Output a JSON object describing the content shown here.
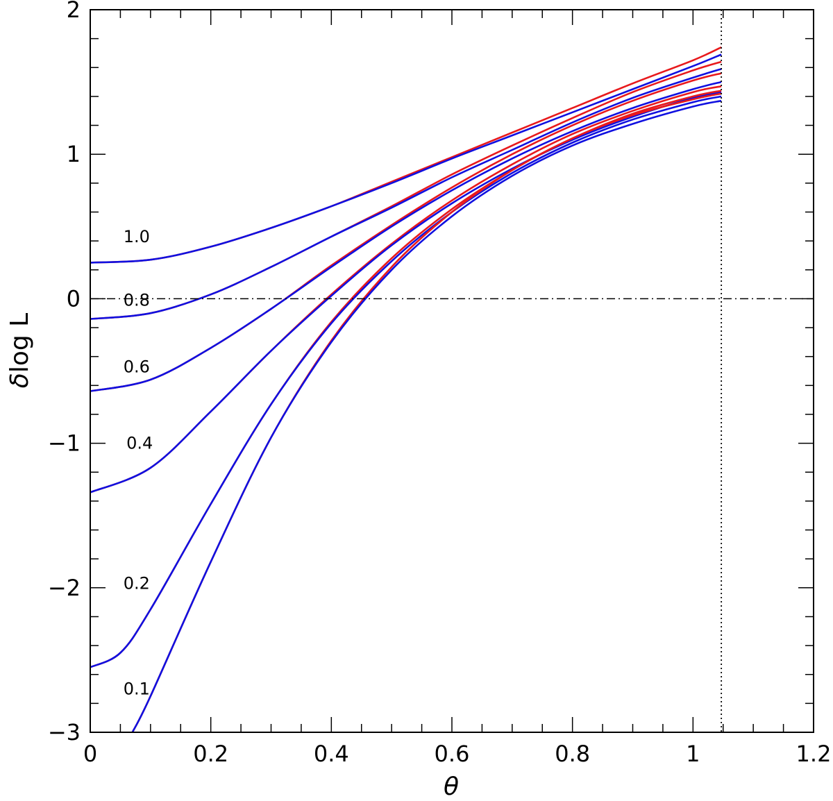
{
  "chart_data": {
    "type": "line",
    "xlabel": "θ",
    "ylabel_prefix": "δ",
    "ylabel_text": "log  L",
    "xlim": [
      0,
      1.2
    ],
    "ylim": [
      -3,
      2
    ],
    "xticks_major": [
      0,
      0.2,
      0.4,
      0.6,
      0.8,
      1,
      1.2
    ],
    "xtick_labels": [
      "0",
      "0.2",
      "0.4",
      "0.6",
      "0.8",
      "1",
      "1.2"
    ],
    "yticks_major": [
      -3,
      -2,
      -1,
      0,
      1,
      2
    ],
    "ytick_labels": [
      "−3",
      "−2",
      "−1",
      "0",
      "1",
      "2"
    ],
    "x_minor_step": 0.05,
    "y_minor_step": 0.2,
    "grid": false,
    "legend": "none",
    "colors": {
      "red": "#e8191c",
      "blue": "#1010e0",
      "axis": "#000000"
    },
    "reference_lines": [
      {
        "kind": "horizontal",
        "value": 0,
        "style": "dash-dot"
      },
      {
        "kind": "vertical",
        "value": 1.047,
        "style": "dotted"
      }
    ],
    "curve_labels": [
      {
        "text": "1.0",
        "x": 0.055,
        "y": 0.43
      },
      {
        "text": "0.8",
        "x": 0.055,
        "y": -0.01
      },
      {
        "text": "0.6",
        "x": 0.055,
        "y": -0.47
      },
      {
        "text": "0.4",
        "x": 0.06,
        "y": -1.0
      },
      {
        "text": "0.2",
        "x": 0.055,
        "y": -1.97
      },
      {
        "text": "0.1",
        "x": 0.055,
        "y": -2.7
      }
    ],
    "series": [
      {
        "label": "1.0",
        "color": "red",
        "points": [
          [
            0,
            0.25
          ],
          [
            0.1,
            0.27
          ],
          [
            0.2,
            0.36
          ],
          [
            0.3,
            0.49
          ],
          [
            0.4,
            0.64
          ],
          [
            0.5,
            0.81
          ],
          [
            0.6,
            0.98
          ],
          [
            0.7,
            1.15
          ],
          [
            0.8,
            1.32
          ],
          [
            0.9,
            1.49
          ],
          [
            1.0,
            1.65
          ],
          [
            1.047,
            1.74
          ]
        ]
      },
      {
        "label": "1.0",
        "color": "blue",
        "points": [
          [
            0,
            0.25
          ],
          [
            0.1,
            0.27
          ],
          [
            0.2,
            0.36
          ],
          [
            0.3,
            0.49
          ],
          [
            0.4,
            0.64
          ],
          [
            0.5,
            0.8
          ],
          [
            0.6,
            0.97
          ],
          [
            0.7,
            1.13
          ],
          [
            0.8,
            1.29
          ],
          [
            0.9,
            1.45
          ],
          [
            1.0,
            1.61
          ],
          [
            1.047,
            1.69
          ]
        ]
      },
      {
        "label": "0.8",
        "color": "red",
        "points": [
          [
            0,
            -0.14
          ],
          [
            0.1,
            -0.1
          ],
          [
            0.2,
            0.03
          ],
          [
            0.3,
            0.22
          ],
          [
            0.4,
            0.43
          ],
          [
            0.5,
            0.64
          ],
          [
            0.6,
            0.86
          ],
          [
            0.7,
            1.06
          ],
          [
            0.8,
            1.25
          ],
          [
            0.9,
            1.43
          ],
          [
            1.0,
            1.58
          ],
          [
            1.047,
            1.64
          ]
        ]
      },
      {
        "label": "0.8",
        "color": "blue",
        "points": [
          [
            0,
            -0.14
          ],
          [
            0.1,
            -0.1
          ],
          [
            0.2,
            0.03
          ],
          [
            0.3,
            0.22
          ],
          [
            0.4,
            0.43
          ],
          [
            0.5,
            0.63
          ],
          [
            0.6,
            0.84
          ],
          [
            0.7,
            1.03
          ],
          [
            0.8,
            1.22
          ],
          [
            0.9,
            1.39
          ],
          [
            1.0,
            1.53
          ],
          [
            1.047,
            1.59
          ]
        ]
      },
      {
        "label": "0.6",
        "color": "red",
        "points": [
          [
            0,
            -0.64
          ],
          [
            0.1,
            -0.56
          ],
          [
            0.2,
            -0.34
          ],
          [
            0.3,
            -0.07
          ],
          [
            0.4,
            0.23
          ],
          [
            0.5,
            0.51
          ],
          [
            0.6,
            0.77
          ],
          [
            0.7,
            1.0
          ],
          [
            0.8,
            1.2
          ],
          [
            0.9,
            1.37
          ],
          [
            1.0,
            1.51
          ],
          [
            1.047,
            1.56
          ]
        ]
      },
      {
        "label": "0.6",
        "color": "blue",
        "points": [
          [
            0,
            -0.64
          ],
          [
            0.1,
            -0.56
          ],
          [
            0.2,
            -0.34
          ],
          [
            0.3,
            -0.07
          ],
          [
            0.4,
            0.22
          ],
          [
            0.5,
            0.5
          ],
          [
            0.6,
            0.75
          ],
          [
            0.7,
            0.97
          ],
          [
            0.8,
            1.16
          ],
          [
            0.9,
            1.32
          ],
          [
            1.0,
            1.45
          ],
          [
            1.047,
            1.5
          ]
        ]
      },
      {
        "label": "0.4",
        "color": "red",
        "points": [
          [
            0,
            -1.34
          ],
          [
            0.1,
            -1.17
          ],
          [
            0.2,
            -0.78
          ],
          [
            0.3,
            -0.36
          ],
          [
            0.4,
            0.03
          ],
          [
            0.5,
            0.38
          ],
          [
            0.6,
            0.68
          ],
          [
            0.7,
            0.93
          ],
          [
            0.8,
            1.14
          ],
          [
            0.9,
            1.3
          ],
          [
            1.0,
            1.43
          ],
          [
            1.047,
            1.47
          ]
        ]
      },
      {
        "label": "0.4",
        "color": "blue",
        "points": [
          [
            0,
            -1.34
          ],
          [
            0.1,
            -1.17
          ],
          [
            0.2,
            -0.78
          ],
          [
            0.3,
            -0.36
          ],
          [
            0.4,
            0.02
          ],
          [
            0.5,
            0.37
          ],
          [
            0.6,
            0.66
          ],
          [
            0.7,
            0.9
          ],
          [
            0.8,
            1.1
          ],
          [
            0.9,
            1.26
          ],
          [
            1.0,
            1.39
          ],
          [
            1.047,
            1.43
          ]
        ]
      },
      {
        "label": "0.2",
        "color": "red",
        "points": [
          [
            0,
            -2.55
          ],
          [
            0.05,
            -2.45
          ],
          [
            0.1,
            -2.15
          ],
          [
            0.2,
            -1.42
          ],
          [
            0.3,
            -0.73
          ],
          [
            0.4,
            -0.16
          ],
          [
            0.5,
            0.28
          ],
          [
            0.6,
            0.62
          ],
          [
            0.7,
            0.89
          ],
          [
            0.8,
            1.11
          ],
          [
            0.9,
            1.28
          ],
          [
            1.0,
            1.4
          ],
          [
            1.047,
            1.44
          ]
        ]
      },
      {
        "label": "0.2",
        "color": "blue",
        "points": [
          [
            0,
            -2.55
          ],
          [
            0.05,
            -2.45
          ],
          [
            0.1,
            -2.15
          ],
          [
            0.2,
            -1.42
          ],
          [
            0.3,
            -0.73
          ],
          [
            0.4,
            -0.17
          ],
          [
            0.5,
            0.26
          ],
          [
            0.6,
            0.6
          ],
          [
            0.7,
            0.87
          ],
          [
            0.8,
            1.08
          ],
          [
            0.9,
            1.24
          ],
          [
            1.0,
            1.36
          ],
          [
            1.047,
            1.4
          ]
        ]
      },
      {
        "label": "0.1",
        "color": "red",
        "points": [
          [
            0.07,
            -3.0
          ],
          [
            0.1,
            -2.75
          ],
          [
            0.2,
            -1.82
          ],
          [
            0.3,
            -0.96
          ],
          [
            0.4,
            -0.29
          ],
          [
            0.5,
            0.22
          ],
          [
            0.6,
            0.6
          ],
          [
            0.7,
            0.89
          ],
          [
            0.8,
            1.11
          ],
          [
            0.9,
            1.27
          ],
          [
            1.0,
            1.38
          ],
          [
            1.047,
            1.42
          ]
        ]
      },
      {
        "label": "0.1",
        "color": "blue",
        "points": [
          [
            0.07,
            -3.0
          ],
          [
            0.1,
            -2.75
          ],
          [
            0.2,
            -1.82
          ],
          [
            0.3,
            -0.96
          ],
          [
            0.4,
            -0.3
          ],
          [
            0.5,
            0.2
          ],
          [
            0.6,
            0.57
          ],
          [
            0.7,
            0.85
          ],
          [
            0.8,
            1.06
          ],
          [
            0.9,
            1.21
          ],
          [
            1.0,
            1.33
          ],
          [
            1.047,
            1.37
          ]
        ]
      }
    ]
  }
}
